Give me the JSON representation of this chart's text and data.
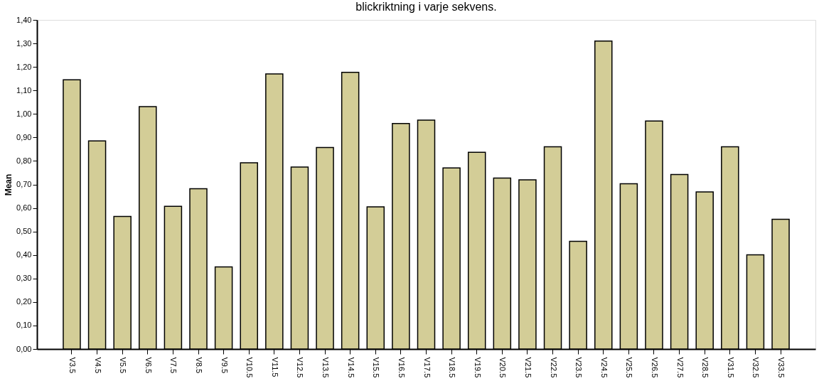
{
  "chart_data": {
    "type": "bar",
    "title": "blickriktning i varje sekvens.",
    "ylabel": "Mean",
    "categories": [
      "V3.5",
      "V4.5",
      "V5.5",
      "V6.5",
      "V7.5",
      "V8.5",
      "V9.5",
      "V10.5",
      "V11.5",
      "V12.5",
      "V13.5",
      "V14.5",
      "V15.5",
      "V16.5",
      "V17.5",
      "V18.5",
      "V19.5",
      "V20.5",
      "V21.5",
      "V22.5",
      "V23.5",
      "V24.5",
      "V25.5",
      "V26.5",
      "V27.5",
      "V28.5",
      "V31.5",
      "V32.5",
      "V33.5"
    ],
    "values": [
      1.145,
      0.885,
      0.564,
      1.031,
      0.607,
      0.682,
      0.349,
      0.792,
      1.17,
      0.774,
      0.857,
      1.177,
      0.605,
      0.959,
      0.974,
      0.77,
      0.837,
      0.727,
      0.72,
      0.86,
      0.458,
      1.31,
      0.703,
      0.97,
      0.742,
      0.668,
      0.86,
      0.401,
      0.552
    ],
    "color": "#d3cd97",
    "ylim": [
      0,
      1.4
    ],
    "yticks": [
      {
        "value": 0,
        "label": "0,00"
      },
      {
        "value": 0.1,
        "label": "0,10"
      },
      {
        "value": 0.2,
        "label": "0,20"
      },
      {
        "value": 0.3,
        "label": "0,30"
      },
      {
        "value": 0.4,
        "label": "0,40"
      },
      {
        "value": 0.5,
        "label": "0,50"
      },
      {
        "value": 0.6,
        "label": "0,60"
      },
      {
        "value": 0.7,
        "label": "0,70"
      },
      {
        "value": 0.8,
        "label": "0,80"
      },
      {
        "value": 0.9,
        "label": "0,90"
      },
      {
        "value": 1.0,
        "label": "1,00"
      },
      {
        "value": 1.1,
        "label": "1,10"
      },
      {
        "value": 1.2,
        "label": "1,20"
      },
      {
        "value": 1.3,
        "label": "1,30"
      },
      {
        "value": 1.4,
        "label": "1,40"
      }
    ],
    "grid": false
  }
}
